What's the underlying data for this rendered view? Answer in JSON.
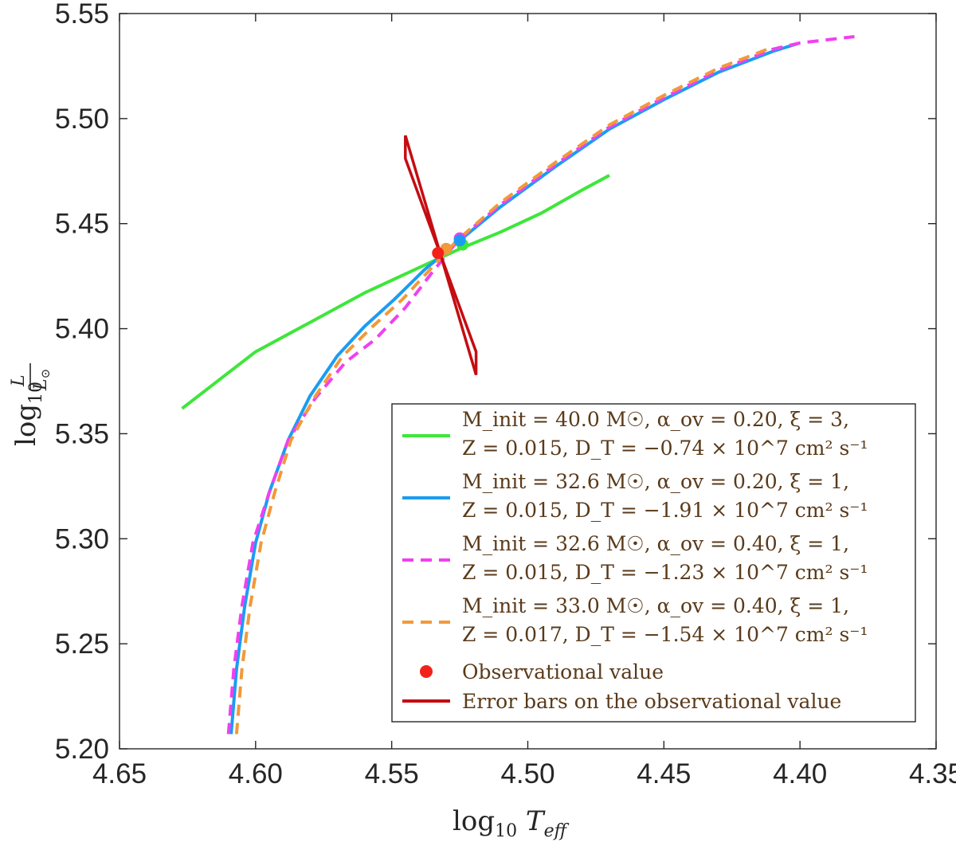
{
  "chart_data": {
    "type": "line",
    "xlabel": "log10 Teff",
    "ylabel": "log10 L/L☉",
    "xlim": [
      4.65,
      4.35
    ],
    "ylim": [
      5.2,
      5.55
    ],
    "x_reversed": true,
    "xticks": [
      "4.65",
      "4.60",
      "4.55",
      "4.50",
      "4.45",
      "4.40",
      "4.35"
    ],
    "yticks": [
      "5.20",
      "5.25",
      "5.30",
      "5.35",
      "5.40",
      "5.45",
      "5.50",
      "5.55"
    ],
    "grid": false,
    "legend_placement": "bottom-right",
    "series": [
      {
        "legend_line1": "M_init = 40.0 M☉, α_ov = 0.20, ξ = 3,",
        "legend_line2": "Z = 0.015, D_T = −0.74 × 10^7 cm² s⁻¹",
        "color": "#3ee63a",
        "dash": "solid",
        "points": [
          [
            4.627,
            5.362
          ],
          [
            4.615,
            5.374
          ],
          [
            4.6,
            5.389
          ],
          [
            4.58,
            5.403
          ],
          [
            4.56,
            5.417
          ],
          [
            4.54,
            5.429
          ],
          [
            4.525,
            5.438
          ],
          [
            4.51,
            5.446
          ],
          [
            4.495,
            5.455
          ],
          [
            4.48,
            5.466
          ],
          [
            4.47,
            5.473
          ]
        ]
      },
      {
        "legend_line1": "M_init = 32.6 M☉, α_ov = 0.20, ξ = 1,",
        "legend_line2": "Z = 0.015, D_T = −1.91 × 10^7 cm² s⁻¹",
        "color": "#1b9cf2",
        "dash": "solid",
        "points": [
          [
            4.609,
            5.207
          ],
          [
            4.607,
            5.238
          ],
          [
            4.604,
            5.268
          ],
          [
            4.6,
            5.298
          ],
          [
            4.595,
            5.322
          ],
          [
            4.588,
            5.347
          ],
          [
            4.58,
            5.368
          ],
          [
            4.57,
            5.387
          ],
          [
            4.56,
            5.401
          ],
          [
            4.549,
            5.414
          ],
          [
            4.538,
            5.428
          ],
          [
            4.525,
            5.442
          ],
          [
            4.51,
            5.458
          ],
          [
            4.49,
            5.477
          ],
          [
            4.47,
            5.495
          ],
          [
            4.45,
            5.509
          ],
          [
            4.43,
            5.522
          ],
          [
            4.41,
            5.532
          ],
          [
            4.4,
            5.536
          ]
        ]
      },
      {
        "legend_line1": "M_init = 32.6 M☉, α_ov = 0.40, ξ = 1,",
        "legend_line2": "Z = 0.015, D_T = −1.23 × 10^7 cm² s⁻¹",
        "color": "#f23ff0",
        "dash": "dashed",
        "points": [
          [
            4.61,
            5.207
          ],
          [
            4.608,
            5.238
          ],
          [
            4.605,
            5.268
          ],
          [
            4.601,
            5.298
          ],
          [
            4.595,
            5.322
          ],
          [
            4.588,
            5.347
          ],
          [
            4.578,
            5.367
          ],
          [
            4.567,
            5.384
          ],
          [
            4.556,
            5.395
          ],
          [
            4.545,
            5.41
          ],
          [
            4.535,
            5.427
          ],
          [
            4.525,
            5.443
          ],
          [
            4.51,
            5.459
          ],
          [
            4.49,
            5.478
          ],
          [
            4.47,
            5.496
          ],
          [
            4.45,
            5.51
          ],
          [
            4.43,
            5.523
          ],
          [
            4.41,
            5.533
          ],
          [
            4.4,
            5.536
          ],
          [
            4.38,
            5.539
          ]
        ]
      },
      {
        "legend_line1": "M_init = 33.0 M☉, α_ov = 0.40, ξ = 1,",
        "legend_line2": "Z = 0.017, D_T = −1.54 × 10^7 cm² s⁻¹",
        "color": "#f2993a",
        "dash": "dashed",
        "points": [
          [
            4.607,
            5.207
          ],
          [
            4.605,
            5.238
          ],
          [
            4.602,
            5.268
          ],
          [
            4.598,
            5.298
          ],
          [
            4.593,
            5.322
          ],
          [
            4.587,
            5.347
          ],
          [
            4.578,
            5.368
          ],
          [
            4.568,
            5.387
          ],
          [
            4.557,
            5.401
          ],
          [
            4.546,
            5.414
          ],
          [
            4.536,
            5.428
          ],
          [
            4.526,
            5.442
          ],
          [
            4.51,
            5.46
          ],
          [
            4.49,
            5.479
          ],
          [
            4.47,
            5.497
          ],
          [
            4.45,
            5.511
          ],
          [
            4.43,
            5.524
          ],
          [
            4.41,
            5.534
          ]
        ]
      }
    ],
    "track_end_markers": [
      {
        "x": 4.524,
        "y": 5.44,
        "color": "#3ee63a"
      },
      {
        "x": 4.525,
        "y": 5.443,
        "color": "#f23ff0"
      },
      {
        "x": 4.525,
        "y": 5.442,
        "color": "#1b9cf2"
      },
      {
        "x": 4.53,
        "y": 5.438,
        "color": "#f2993a"
      }
    ],
    "observation": {
      "legend": "Observational value",
      "x": 4.533,
      "y": 5.436,
      "color": "#f2221a"
    },
    "error_box": {
      "legend": "Error bars on the observational value",
      "color": "#c40d12",
      "points": [
        [
          4.545,
          5.492
        ],
        [
          4.545,
          5.481
        ],
        [
          4.519,
          5.389
        ],
        [
          4.519,
          5.378
        ],
        [
          4.545,
          5.492
        ]
      ]
    },
    "labels": {
      "ytick_5_50": "5.50"
    }
  }
}
